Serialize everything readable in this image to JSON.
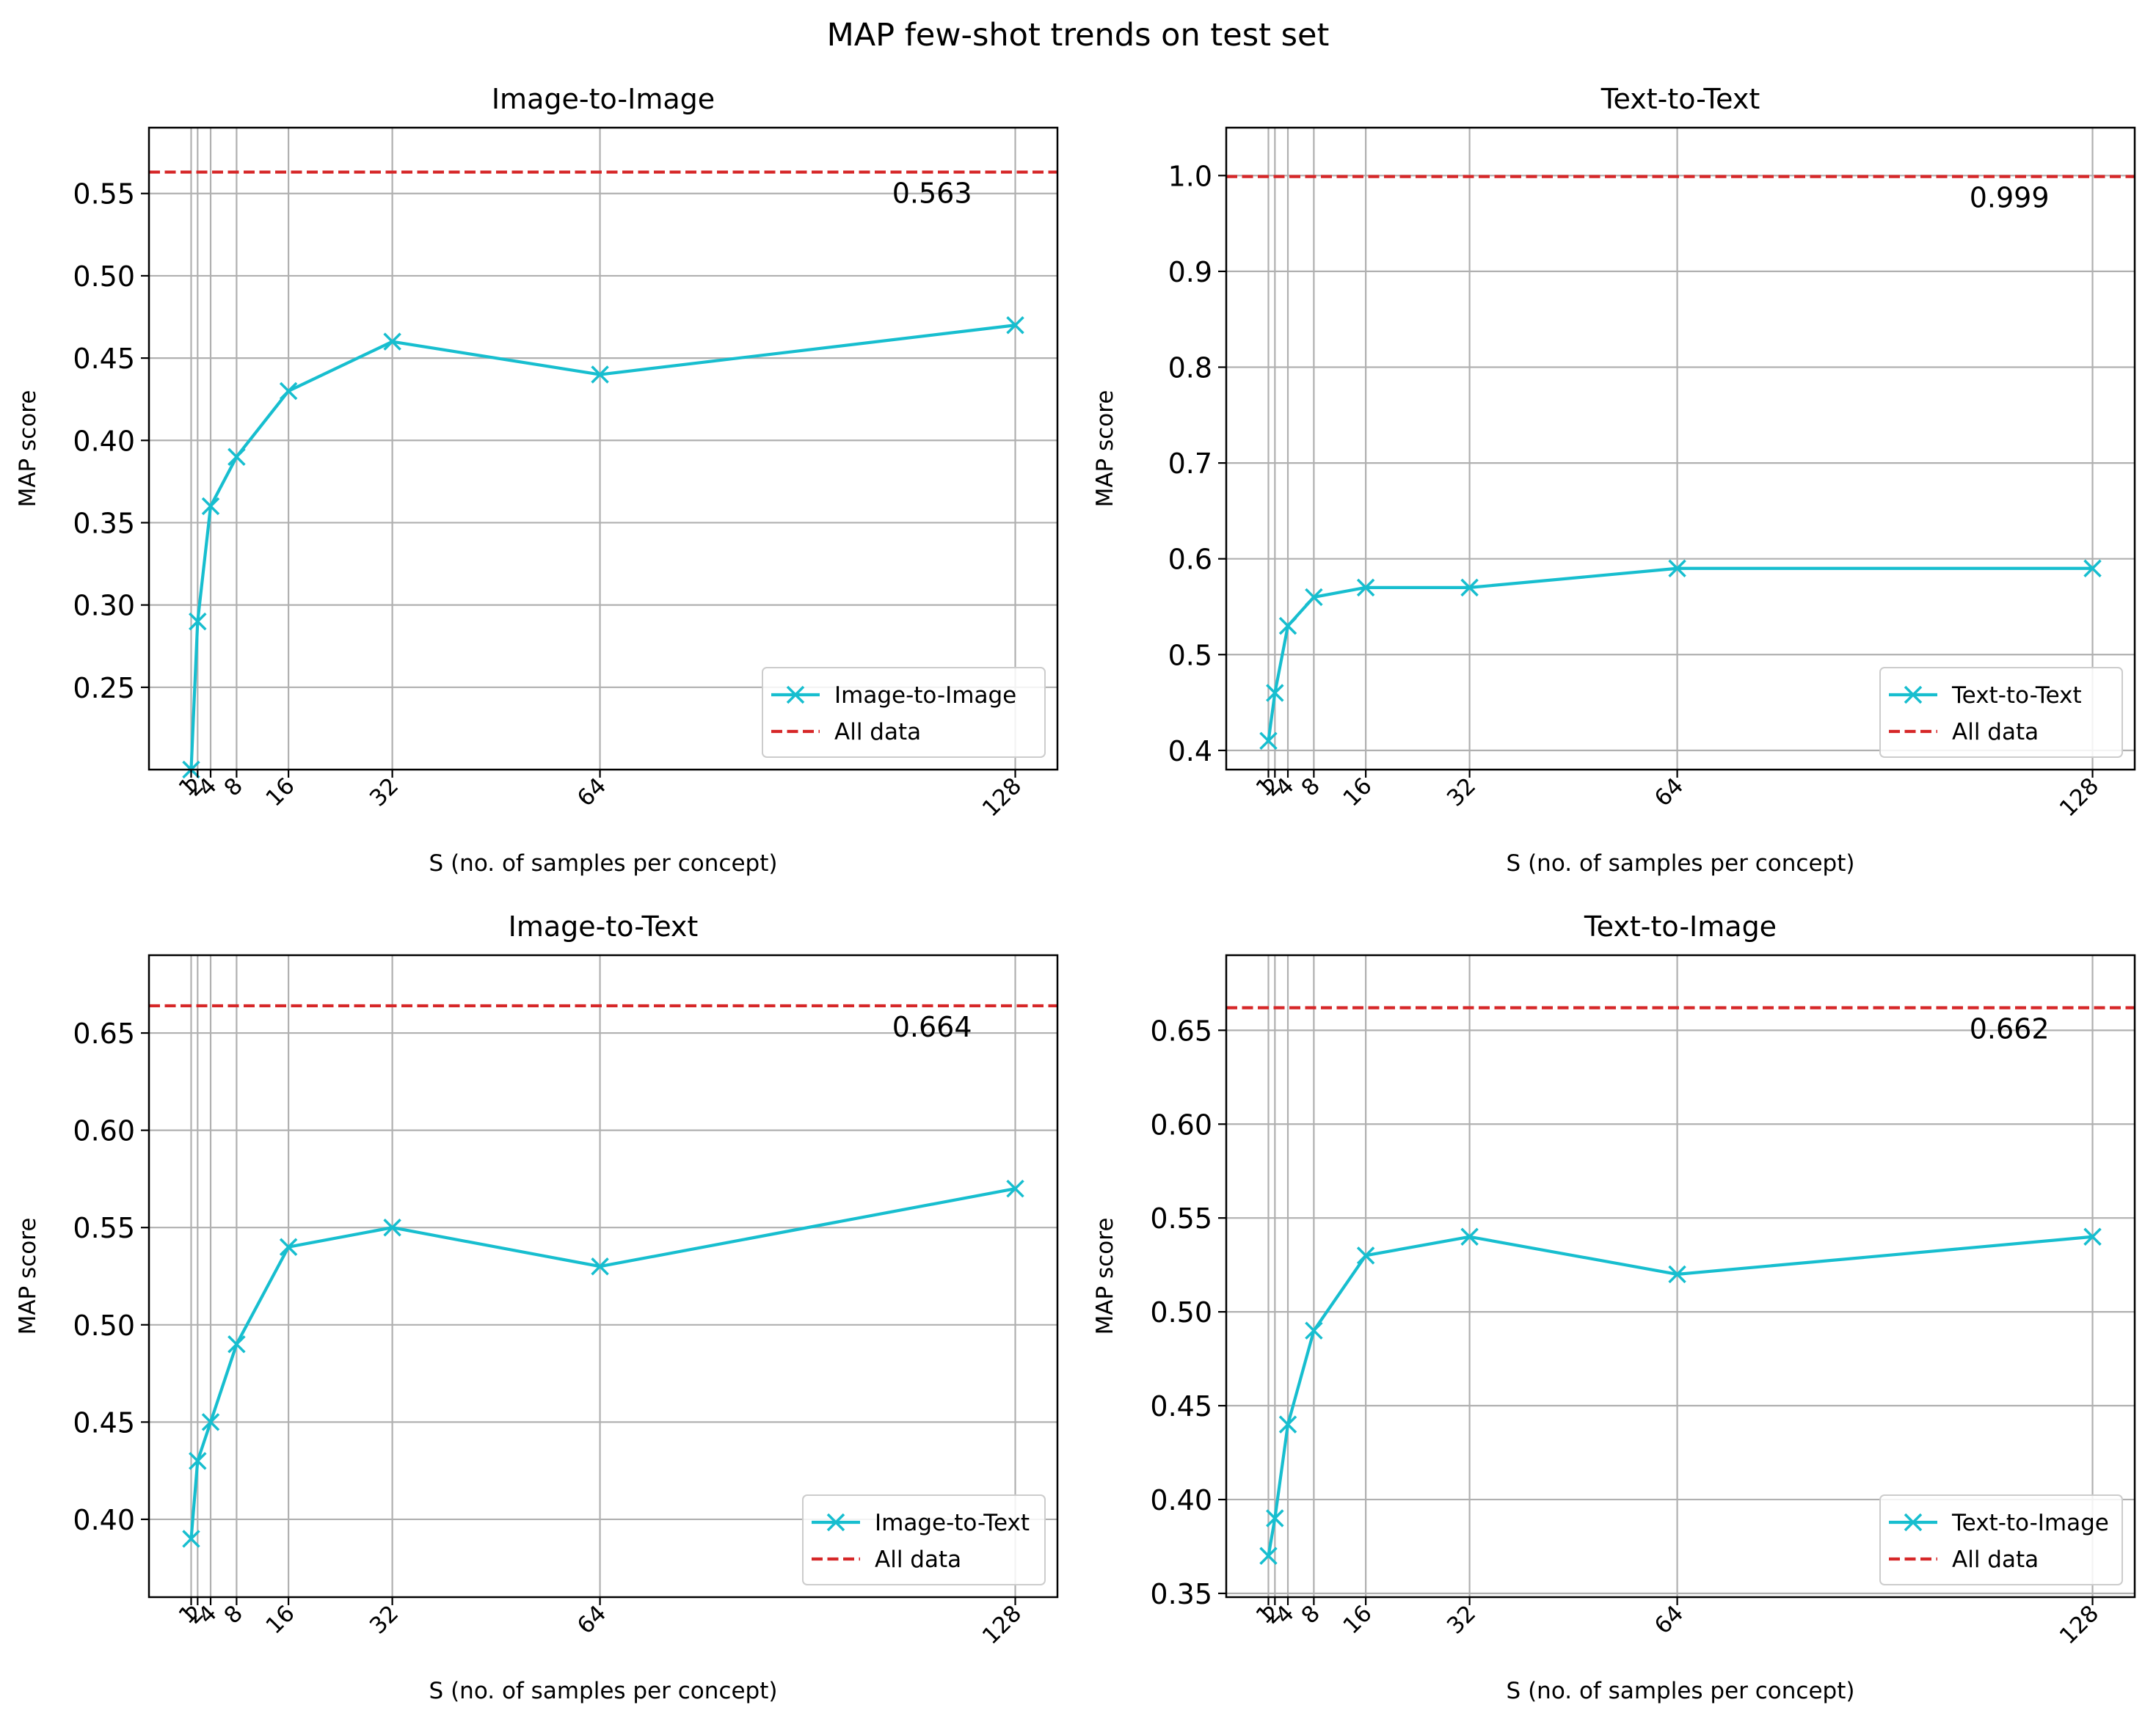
{
  "figure": {
    "title": "MAP few-shot trends on test set"
  },
  "colors": {
    "series": "#17becf",
    "reference": "#d62728",
    "grid": "#b0b0b0",
    "axes": "#000000"
  },
  "chart_data": [
    {
      "type": "line",
      "title": "Image-to-Image",
      "xlabel": "S (no. of samples per concept)",
      "ylabel": "MAP score",
      "x": [
        1,
        2,
        4,
        8,
        16,
        32,
        64,
        128
      ],
      "xticks": [
        "1",
        "2",
        "4",
        "8",
        "16",
        "32",
        "64",
        "128"
      ],
      "xlim": [
        -5.5,
        134.5
      ],
      "ylim": [
        0.2,
        0.59
      ],
      "yticks": [
        0.25,
        0.3,
        0.35,
        0.4,
        0.45,
        0.5,
        0.55
      ],
      "yticklabels": [
        "0.25",
        "0.30",
        "0.35",
        "0.40",
        "0.45",
        "0.50",
        "0.55"
      ],
      "series": [
        {
          "name": "Image-to-Image",
          "values": [
            0.2,
            0.29,
            0.36,
            0.39,
            0.43,
            0.46,
            0.44,
            0.47
          ]
        }
      ],
      "reference": {
        "name": "All data",
        "value": 0.563,
        "label": "0.563"
      },
      "grid": true,
      "legend": "lower-right"
    },
    {
      "type": "line",
      "title": "Text-to-Text",
      "xlabel": "S (no. of samples per concept)",
      "ylabel": "MAP score",
      "x": [
        1,
        2,
        4,
        8,
        16,
        32,
        64,
        128
      ],
      "xticks": [
        "1",
        "2",
        "4",
        "8",
        "16",
        "32",
        "64",
        "128"
      ],
      "xlim": [
        -5.5,
        134.5
      ],
      "ylim": [
        0.38,
        1.05
      ],
      "yticks": [
        0.4,
        0.5,
        0.6,
        0.7,
        0.8,
        0.9,
        1.0
      ],
      "yticklabels": [
        "0.4",
        "0.5",
        "0.6",
        "0.7",
        "0.8",
        "0.9",
        "1.0"
      ],
      "series": [
        {
          "name": "Text-to-Text",
          "values": [
            0.41,
            0.46,
            0.53,
            0.56,
            0.57,
            0.57,
            0.59,
            0.59
          ]
        }
      ],
      "reference": {
        "name": "All data",
        "value": 0.999,
        "label": "0.999"
      },
      "grid": true,
      "legend": "lower-right"
    },
    {
      "type": "line",
      "title": "Image-to-Text",
      "xlabel": "S (no. of samples per concept)",
      "ylabel": "MAP score",
      "x": [
        1,
        2,
        4,
        8,
        16,
        32,
        64,
        128
      ],
      "xticks": [
        "1",
        "2",
        "4",
        "8",
        "16",
        "32",
        "64",
        "128"
      ],
      "xlim": [
        -5.5,
        134.5
      ],
      "ylim": [
        0.36,
        0.69
      ],
      "yticks": [
        0.4,
        0.45,
        0.5,
        0.55,
        0.6,
        0.65
      ],
      "yticklabels": [
        "0.40",
        "0.45",
        "0.50",
        "0.55",
        "0.60",
        "0.65"
      ],
      "series": [
        {
          "name": "Image-to-Text",
          "values": [
            0.39,
            0.43,
            0.45,
            0.49,
            0.54,
            0.55,
            0.53,
            0.57
          ]
        }
      ],
      "reference": {
        "name": "All data",
        "value": 0.664,
        "label": "0.664"
      },
      "grid": true,
      "legend": "lower-right"
    },
    {
      "type": "line",
      "title": "Text-to-Image",
      "xlabel": "S (no. of samples per concept)",
      "ylabel": "MAP score",
      "x": [
        1,
        2,
        4,
        8,
        16,
        32,
        64,
        128
      ],
      "xticks": [
        "1",
        "2",
        "4",
        "8",
        "16",
        "32",
        "64",
        "128"
      ],
      "xlim": [
        -5.5,
        134.5
      ],
      "ylim": [
        0.348,
        0.69
      ],
      "yticks": [
        0.35,
        0.4,
        0.45,
        0.5,
        0.55,
        0.6,
        0.65
      ],
      "yticklabels": [
        "0.35",
        "0.40",
        "0.45",
        "0.50",
        "0.55",
        "0.60",
        "0.65"
      ],
      "series": [
        {
          "name": "Text-to-Image",
          "values": [
            0.37,
            0.39,
            0.44,
            0.49,
            0.53,
            0.54,
            0.52,
            0.54
          ]
        }
      ],
      "reference": {
        "name": "All data",
        "value": 0.662,
        "label": "0.662"
      },
      "grid": true,
      "legend": "lower-right"
    }
  ]
}
